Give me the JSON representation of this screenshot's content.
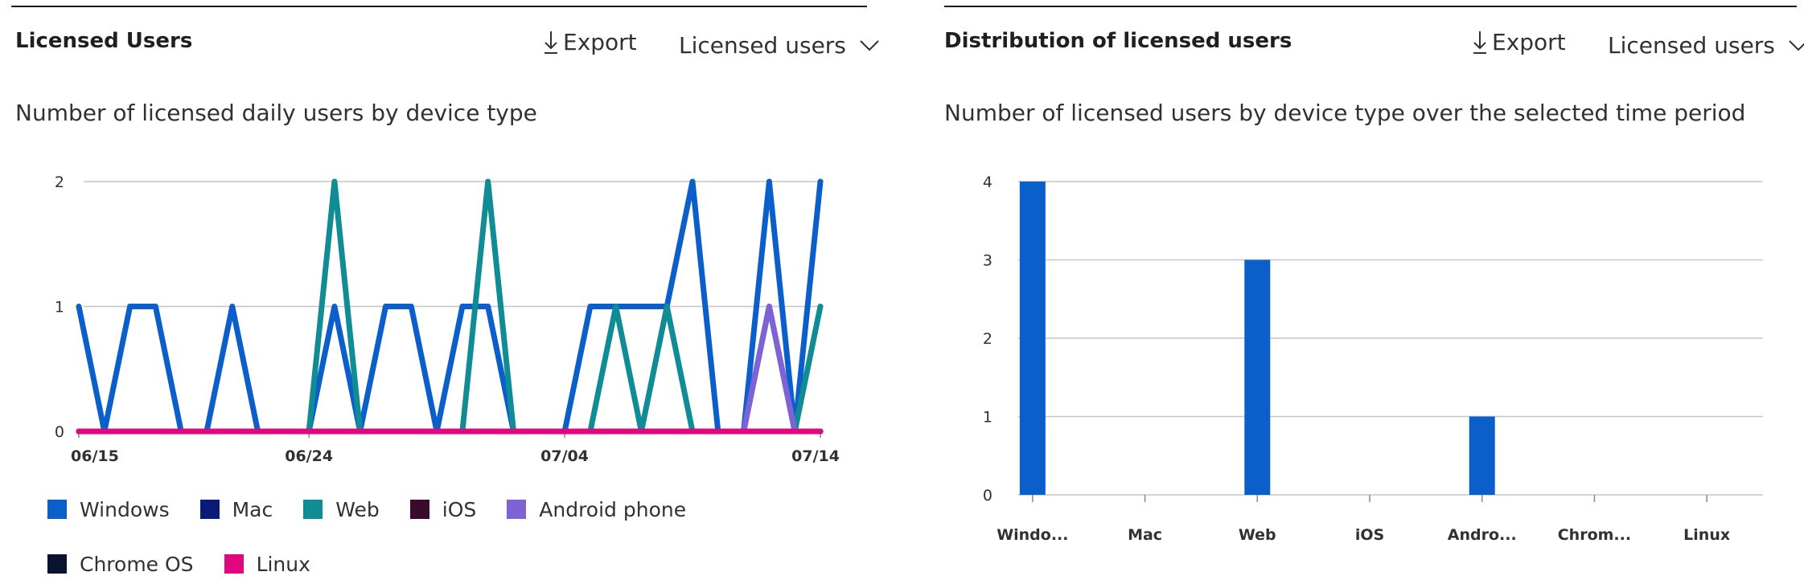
{
  "left_panel": {
    "title": "Licensed Users",
    "export_label": "Export",
    "dropdown_label": "Licensed users",
    "subtitle": "Number of licensed daily users by device type"
  },
  "right_panel": {
    "title": "Distribution of licensed users",
    "export_label": "Export",
    "dropdown_label": "Licensed users",
    "subtitle": "Number of licensed users by device type over the selected time period"
  },
  "colors": {
    "Windows": "#0b5fcb",
    "Mac": "#0b1a78",
    "Web": "#0f8c94",
    "iOS": "#3a0b2a",
    "Android phone": "#7e62d6",
    "Chrome OS": "#0b1230",
    "Linux": "#e0087c",
    "bar": "#0b5fcb",
    "grid": "#c8c6c4"
  },
  "chart_data": [
    {
      "type": "line",
      "title": "",
      "xlabel": "",
      "ylabel": "",
      "x": [
        "06/15",
        "06/16",
        "06/17",
        "06/18",
        "06/19",
        "06/20",
        "06/21",
        "06/22",
        "06/23",
        "06/24",
        "06/25",
        "06/26",
        "06/27",
        "06/28",
        "06/29",
        "06/30",
        "07/01",
        "07/02",
        "07/03",
        "07/04",
        "07/05",
        "07/06",
        "07/07",
        "07/08",
        "07/09",
        "07/10",
        "07/11",
        "07/12",
        "07/13",
        "07/14"
      ],
      "x_ticks": [
        "06/15",
        "06/24",
        "07/04",
        "07/14"
      ],
      "ylim": [
        0,
        2
      ],
      "y_ticks": [
        0,
        1,
        2
      ],
      "grid": true,
      "legend_position": "bottom",
      "series": [
        {
          "name": "Windows",
          "values": [
            1,
            0,
            1,
            1,
            0,
            0,
            1,
            0,
            0,
            0,
            1,
            0,
            1,
            1,
            0,
            1,
            1,
            0,
            0,
            0,
            1,
            1,
            1,
            1,
            2,
            0,
            0,
            2,
            0,
            2
          ]
        },
        {
          "name": "Mac",
          "values": [
            0,
            0,
            0,
            0,
            0,
            0,
            0,
            0,
            0,
            0,
            0,
            0,
            0,
            0,
            0,
            0,
            0,
            0,
            0,
            0,
            0,
            0,
            0,
            0,
            0,
            0,
            0,
            0,
            0,
            0
          ]
        },
        {
          "name": "Web",
          "values": [
            0,
            0,
            0,
            0,
            0,
            0,
            0,
            0,
            0,
            0,
            2,
            0,
            0,
            0,
            0,
            0,
            2,
            0,
            0,
            0,
            0,
            1,
            0,
            1,
            0,
            0,
            0,
            1,
            0,
            1
          ]
        },
        {
          "name": "iOS",
          "values": [
            0,
            0,
            0,
            0,
            0,
            0,
            0,
            0,
            0,
            0,
            0,
            0,
            0,
            0,
            0,
            0,
            0,
            0,
            0,
            0,
            0,
            0,
            0,
            0,
            0,
            0,
            0,
            0,
            0,
            0
          ]
        },
        {
          "name": "Android phone",
          "values": [
            0,
            0,
            0,
            0,
            0,
            0,
            0,
            0,
            0,
            0,
            0,
            0,
            0,
            0,
            0,
            0,
            0,
            0,
            0,
            0,
            0,
            0,
            0,
            0,
            0,
            0,
            0,
            1,
            0,
            0
          ]
        },
        {
          "name": "Chrome OS",
          "values": [
            0,
            0,
            0,
            0,
            0,
            0,
            0,
            0,
            0,
            0,
            0,
            0,
            0,
            0,
            0,
            0,
            0,
            0,
            0,
            0,
            0,
            0,
            0,
            0,
            0,
            0,
            0,
            0,
            0,
            0
          ]
        },
        {
          "name": "Linux",
          "values": [
            0,
            0,
            0,
            0,
            0,
            0,
            0,
            0,
            0,
            0,
            0,
            0,
            0,
            0,
            0,
            0,
            0,
            0,
            0,
            0,
            0,
            0,
            0,
            0,
            0,
            0,
            0,
            0,
            0,
            0
          ]
        }
      ]
    },
    {
      "type": "bar",
      "title": "",
      "xlabel": "",
      "ylabel": "",
      "categories": [
        "Windo...",
        "Mac",
        "Web",
        "iOS",
        "Andro...",
        "Chrom...",
        "Linux"
      ],
      "values": [
        4,
        0,
        3,
        0,
        1,
        0,
        0
      ],
      "ylim": [
        0,
        4
      ],
      "y_ticks": [
        0,
        1,
        2,
        3,
        4
      ],
      "grid": true
    }
  ]
}
